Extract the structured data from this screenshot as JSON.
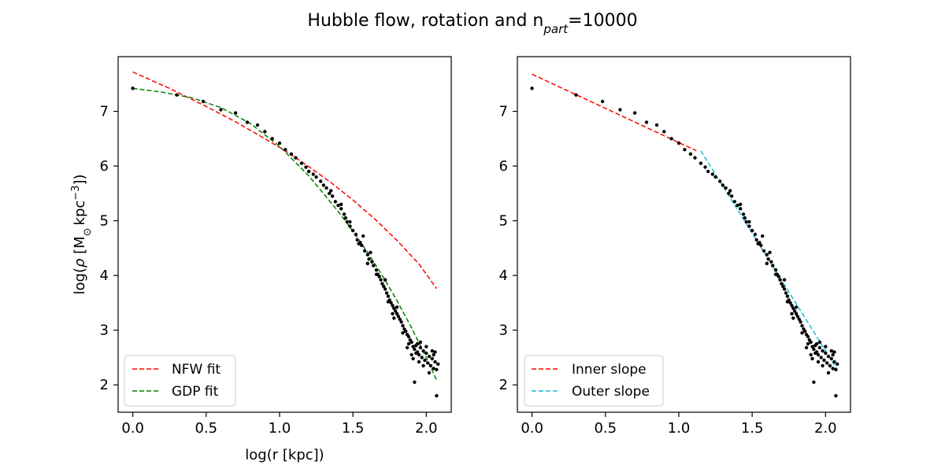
{
  "figure": {
    "title_main": "Hubble flow, rotation and n",
    "title_sub": "part",
    "title_tail": "=10000"
  },
  "chart_data": [
    {
      "type": "scatter",
      "panel": "left",
      "xlabel": "log(r [kpc])",
      "ylabel_prefix": "log(",
      "ylabel_rho": "ρ",
      "ylabel_unit_open": " [M",
      "ylabel_sun": "⊙",
      "ylabel_kpc": "kpc",
      "ylabel_exp": "−3",
      "ylabel_close": "])",
      "xlim": [
        -0.1,
        2.17
      ],
      "ylim": [
        1.5,
        8.0
      ],
      "x_ticks": [
        0.0,
        0.5,
        1.0,
        1.5,
        2.0
      ],
      "x_tick_labels": [
        "0.0",
        "0.5",
        "1.0",
        "1.5",
        "2.0"
      ],
      "y_ticks": [
        2,
        3,
        4,
        5,
        6,
        7
      ],
      "y_tick_labels": [
        "2",
        "3",
        "4",
        "5",
        "6",
        "7"
      ],
      "grid": false,
      "legend_placement": "lower-left",
      "points": [
        [
          0.0,
          7.42
        ],
        [
          0.3,
          7.3
        ],
        [
          0.48,
          7.18
        ],
        [
          0.6,
          7.03
        ],
        [
          0.7,
          6.97
        ],
        [
          0.78,
          6.8
        ],
        [
          0.85,
          6.75
        ],
        [
          0.9,
          6.63
        ],
        [
          0.95,
          6.5
        ],
        [
          1.0,
          6.42
        ],
        [
          1.04,
          6.3
        ],
        [
          1.08,
          6.22
        ],
        [
          1.11,
          6.15
        ],
        [
          1.15,
          6.05
        ],
        [
          1.18,
          5.98
        ],
        [
          1.2,
          5.9
        ],
        [
          1.23,
          5.85
        ],
        [
          1.25,
          5.8
        ],
        [
          1.28,
          5.72
        ],
        [
          1.3,
          5.65
        ],
        [
          1.32,
          5.6
        ],
        [
          1.34,
          5.5
        ],
        [
          1.36,
          5.45
        ],
        [
          1.38,
          5.35
        ],
        [
          1.4,
          5.28
        ],
        [
          1.42,
          5.22
        ],
        [
          1.44,
          5.12
        ],
        [
          1.45,
          5.05
        ],
        [
          1.46,
          4.98
        ],
        [
          1.48,
          4.9
        ],
        [
          1.5,
          4.82
        ],
        [
          1.52,
          4.75
        ],
        [
          1.53,
          4.65
        ],
        [
          1.55,
          4.6
        ],
        [
          1.56,
          4.55
        ],
        [
          1.58,
          4.45
        ],
        [
          1.6,
          4.38
        ],
        [
          1.61,
          4.3
        ],
        [
          1.63,
          4.25
        ],
        [
          1.64,
          4.18
        ],
        [
          1.66,
          4.1
        ],
        [
          1.67,
          4.02
        ],
        [
          1.68,
          3.98
        ],
        [
          1.69,
          3.92
        ],
        [
          1.7,
          3.85
        ],
        [
          1.71,
          3.8
        ],
        [
          1.72,
          3.75
        ],
        [
          1.73,
          3.68
        ],
        [
          1.74,
          3.62
        ],
        [
          1.75,
          3.55
        ],
        [
          1.76,
          3.5
        ],
        [
          1.77,
          3.45
        ],
        [
          1.78,
          3.4
        ],
        [
          1.79,
          3.35
        ],
        [
          1.8,
          3.3
        ],
        [
          1.81,
          3.25
        ],
        [
          1.82,
          3.2
        ],
        [
          1.83,
          3.15
        ],
        [
          1.84,
          3.08
        ],
        [
          1.85,
          3.02
        ],
        [
          1.86,
          2.98
        ],
        [
          1.87,
          2.92
        ],
        [
          1.88,
          2.88
        ],
        [
          1.89,
          2.82
        ],
        [
          1.9,
          2.78
        ],
        [
          1.91,
          2.7
        ],
        [
          1.92,
          2.65
        ],
        [
          1.93,
          2.72
        ],
        [
          1.94,
          2.6
        ],
        [
          1.95,
          2.55
        ],
        [
          1.96,
          2.68
        ],
        [
          1.97,
          2.5
        ],
        [
          1.98,
          2.62
        ],
        [
          1.99,
          2.45
        ],
        [
          2.0,
          2.58
        ],
        [
          2.01,
          2.4
        ],
        [
          2.02,
          2.52
        ],
        [
          2.03,
          2.35
        ],
        [
          2.04,
          2.48
        ],
        [
          2.05,
          2.3
        ],
        [
          2.06,
          2.42
        ],
        [
          2.07,
          2.28
        ],
        [
          2.08,
          2.38
        ],
        [
          1.62,
          4.42
        ],
        [
          1.57,
          4.72
        ],
        [
          1.35,
          5.55
        ],
        [
          1.74,
          3.52
        ],
        [
          1.8,
          3.42
        ],
        [
          1.94,
          2.75
        ],
        [
          1.93,
          2.58
        ],
        [
          2.0,
          2.7
        ],
        [
          2.04,
          2.62
        ],
        [
          2.02,
          2.22
        ],
        [
          1.98,
          2.35
        ],
        [
          1.88,
          2.75
        ],
        [
          1.9,
          2.55
        ],
        [
          1.87,
          2.68
        ],
        [
          1.84,
          2.95
        ],
        [
          1.78,
          3.22
        ],
        [
          1.77,
          3.3
        ],
        [
          1.72,
          3.92
        ],
        [
          1.66,
          4.02
        ],
        [
          1.6,
          4.22
        ],
        [
          1.54,
          4.58
        ],
        [
          1.48,
          4.98
        ],
        [
          1.42,
          5.3
        ],
        [
          1.96,
          2.78
        ],
        [
          1.95,
          2.42
        ],
        [
          1.91,
          2.48
        ],
        [
          2.05,
          2.55
        ],
        [
          2.06,
          2.6
        ],
        [
          1.92,
          2.05
        ],
        [
          2.07,
          1.8
        ]
      ],
      "series": [
        {
          "name": "NFW fit",
          "color": "#ff0000",
          "dash": true,
          "x": [
            0.0,
            0.25,
            0.5,
            0.7,
            0.9,
            1.05,
            1.2,
            1.35,
            1.5,
            1.65,
            1.8,
            1.95,
            2.07
          ],
          "y": [
            7.72,
            7.42,
            7.09,
            6.81,
            6.5,
            6.26,
            5.99,
            5.7,
            5.38,
            5.03,
            4.64,
            4.21,
            3.76
          ]
        },
        {
          "name": "GDP fit",
          "color": "#008000",
          "dash": true,
          "x": [
            0.0,
            0.2,
            0.4,
            0.6,
            0.8,
            1.0,
            1.2,
            1.4,
            1.5,
            1.6,
            1.7,
            1.8,
            1.9,
            2.0,
            2.07
          ],
          "y": [
            7.42,
            7.35,
            7.25,
            7.07,
            6.78,
            6.36,
            5.82,
            5.17,
            4.81,
            4.42,
            4.0,
            3.54,
            3.04,
            2.5,
            2.09
          ]
        }
      ]
    },
    {
      "type": "scatter",
      "panel": "right",
      "xlim": [
        -0.1,
        2.17
      ],
      "ylim": [
        1.5,
        8.0
      ],
      "x_ticks": [
        0.0,
        0.5,
        1.0,
        1.5,
        2.0
      ],
      "x_tick_labels": [
        "0.0",
        "0.5",
        "1.0",
        "1.5",
        "2.0"
      ],
      "y_ticks": [
        2,
        3,
        4,
        5,
        6,
        7
      ],
      "y_tick_labels": [
        "2",
        "3",
        "4",
        "5",
        "6",
        "7"
      ],
      "grid": false,
      "legend_placement": "lower-left",
      "series": [
        {
          "name": "Inner slope",
          "color": "#ff0000",
          "dash": true,
          "x": [
            0.0,
            1.12
          ],
          "y": [
            7.68,
            6.28
          ]
        },
        {
          "name": "Outer slope",
          "color": "#17becf",
          "dash": true,
          "x": [
            1.15,
            2.08
          ],
          "y": [
            6.28,
            2.28
          ]
        }
      ]
    }
  ]
}
